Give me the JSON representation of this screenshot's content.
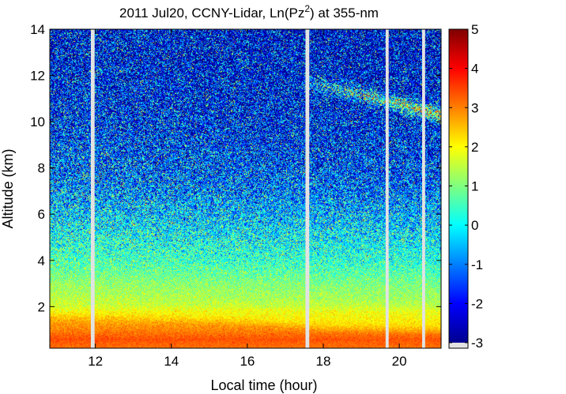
{
  "chart_data": {
    "type": "heatmap",
    "title_prefix": "2011 Jul20, CCNY-Lidar, Ln(Pz",
    "title_superscript": "2",
    "title_suffix": ") at 355-nm",
    "xlabel": "Local time (hour)",
    "ylabel": "Altitude (km)",
    "xlim": [
      10.8,
      21.1
    ],
    "ylim": [
      0.2,
      14.0
    ],
    "x_ticks": [
      12,
      14,
      16,
      18,
      20
    ],
    "x_tick_labels": [
      "12",
      "14",
      "16",
      "18",
      "20"
    ],
    "y_ticks": [
      2,
      4,
      6,
      8,
      10,
      12,
      14
    ],
    "y_tick_labels": [
      "2",
      "4",
      "6",
      "8",
      "10",
      "12",
      "14"
    ],
    "colorbar": {
      "colormap": "jet",
      "limits": [
        -3,
        5
      ],
      "ticks": [
        -3,
        -2,
        -1,
        0,
        1,
        2,
        3,
        4,
        5
      ],
      "tick_labels": [
        "-3",
        "-2",
        "-1",
        "0",
        "1",
        "2",
        "3",
        "4",
        "5"
      ]
    },
    "data_gaps_hour": [
      {
        "start": 11.88,
        "end": 11.98
      },
      {
        "start": 17.53,
        "end": 17.63
      },
      {
        "start": 19.64,
        "end": 19.72
      },
      {
        "start": 20.6,
        "end": 20.68
      }
    ],
    "mean_profile": {
      "altitude_km": [
        0.2,
        0.6,
        1.0,
        1.4,
        1.8,
        2.1,
        2.5,
        3.0,
        3.5,
        4.0,
        5.0,
        6.0,
        7.0,
        8.0,
        10.0,
        12.0,
        14.0
      ],
      "value": [
        2.6,
        2.9,
        2.5,
        2.2,
        2.0,
        1.6,
        1.4,
        1.2,
        0.9,
        0.6,
        0.2,
        -0.3,
        -0.8,
        -1.2,
        -1.7,
        -2.0,
        -2.2
      ]
    },
    "noise_std_by_altitude": {
      "altitude_km": [
        0.2,
        3.0,
        5.0,
        8.0,
        14.0
      ],
      "std": [
        0.15,
        0.4,
        1.0,
        1.6,
        1.9
      ]
    },
    "boundary_layer_top_km": [
      {
        "hour": 10.8,
        "height": 1.55
      },
      {
        "hour": 14.0,
        "height": 1.45
      },
      {
        "hour": 16.5,
        "height": 1.3
      },
      {
        "hour": 18.0,
        "height": 1.0
      },
      {
        "hour": 21.1,
        "height": 0.9
      }
    ],
    "cirrus_cloud": {
      "hour_range": [
        17.5,
        21.1
      ],
      "altitude_start_km": 11.8,
      "altitude_end_km": 10.3,
      "peak_value": 3.0
    }
  }
}
